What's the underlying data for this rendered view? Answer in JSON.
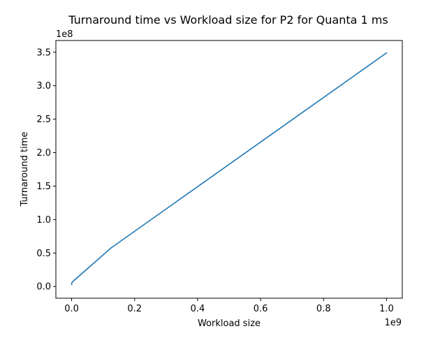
{
  "chart_data": {
    "type": "line",
    "title": "Turnaround time vs Workload size for P2 for Quanta 1 ms",
    "xlabel": "Workload size",
    "ylabel": "Turnaround time",
    "x_offset_label": "1e9",
    "y_offset_label": "1e8",
    "xlim": [
      -0.05,
      1.05
    ],
    "ylim": [
      -0.175,
      3.675
    ],
    "x_ticks": [
      0.0,
      0.2,
      0.4,
      0.6,
      0.8,
      1.0
    ],
    "x_tick_labels": [
      "0.0",
      "0.2",
      "0.4",
      "0.6",
      "0.8",
      "1.0"
    ],
    "y_ticks": [
      0.0,
      0.5,
      1.0,
      1.5,
      2.0,
      2.5,
      3.0,
      3.5
    ],
    "y_tick_labels": [
      "0.0",
      "0.5",
      "1.0",
      "1.5",
      "2.0",
      "2.5",
      "3.0",
      "3.5"
    ],
    "grid": false,
    "legend": "none",
    "series": [
      {
        "color": "#1f77b4",
        "x": [
          0.0,
          0.001,
          0.01,
          0.125,
          1.0
        ],
        "y": [
          0.03,
          0.06,
          0.1,
          0.575,
          3.49
        ]
      }
    ]
  }
}
